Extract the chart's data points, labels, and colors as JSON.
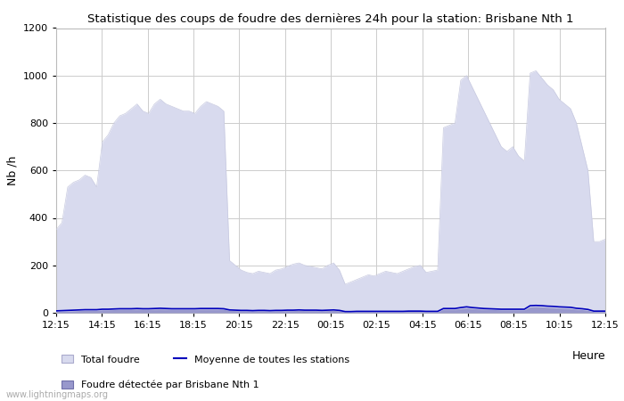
{
  "title": "Statistique des coups de foudre des dernières 24h pour la station: Brisbane Nth 1",
  "ylabel": "Nb /h",
  "xlabel": "Heure",
  "xlim_labels": [
    "12:15",
    "14:15",
    "16:15",
    "18:15",
    "20:15",
    "22:15",
    "00:15",
    "02:15",
    "04:15",
    "06:15",
    "08:15",
    "10:15",
    "12:15"
  ],
  "ylim": [
    0,
    1200
  ],
  "yticks": [
    0,
    200,
    400,
    600,
    800,
    1000,
    1200
  ],
  "bg_color": "#ffffff",
  "grid_color": "#cccccc",
  "total_foudre_color": "#d8daee",
  "total_foudre_edge": "#c8cae0",
  "detected_color": "#9898cc",
  "moyenne_color": "#0000bb",
  "watermark": "www.lightningmaps.org",
  "legend_total": "Total foudre",
  "legend_moyenne": "Moyenne de toutes les stations",
  "legend_detected": "Foudre détectée par Brisbane Nth 1",
  "total_foudre_x": [
    0,
    1,
    2,
    3,
    4,
    5,
    6,
    7,
    8,
    9,
    10,
    11,
    12,
    13,
    14,
    15,
    16,
    17,
    18,
    19,
    20,
    21,
    22,
    23,
    24,
    25,
    26,
    27,
    28,
    29,
    30,
    31,
    32,
    33,
    34,
    35,
    36,
    37,
    38,
    39,
    40,
    41,
    42,
    43,
    44,
    45,
    46,
    47,
    48,
    49,
    50,
    51,
    52,
    53,
    54,
    55,
    56,
    57,
    58,
    59,
    60,
    61,
    62,
    63,
    64,
    65,
    66,
    67,
    68,
    69,
    70,
    71,
    72,
    73,
    74,
    75,
    76,
    77,
    78,
    79,
    80,
    81,
    82,
    83,
    84,
    85,
    86,
    87,
    88,
    89,
    90,
    91,
    92,
    93,
    94,
    95
  ],
  "total_foudre_y": [
    350,
    380,
    530,
    550,
    560,
    580,
    570,
    530,
    720,
    750,
    800,
    830,
    840,
    860,
    880,
    850,
    840,
    880,
    900,
    880,
    870,
    860,
    850,
    850,
    840,
    870,
    890,
    880,
    870,
    850,
    220,
    200,
    180,
    170,
    165,
    175,
    170,
    165,
    180,
    185,
    195,
    205,
    210,
    200,
    195,
    190,
    185,
    200,
    210,
    180,
    120,
    130,
    140,
    150,
    160,
    155,
    165,
    175,
    170,
    165,
    175,
    185,
    195,
    200,
    170,
    175,
    180,
    780,
    790,
    800,
    980,
    1000,
    950,
    900,
    850,
    800,
    750,
    700,
    680,
    700,
    660,
    640,
    1010,
    1020,
    990,
    960,
    940,
    900,
    880,
    860,
    800,
    700,
    600,
    300,
    300,
    310
  ],
  "detected_x": [
    0,
    1,
    2,
    3,
    4,
    5,
    6,
    7,
    8,
    9,
    10,
    11,
    12,
    13,
    14,
    15,
    16,
    17,
    18,
    19,
    20,
    21,
    22,
    23,
    24,
    25,
    26,
    27,
    28,
    29,
    30,
    31,
    32,
    33,
    34,
    35,
    36,
    37,
    38,
    39,
    40,
    41,
    42,
    43,
    44,
    45,
    46,
    47,
    48,
    49,
    50,
    51,
    52,
    53,
    54,
    55,
    56,
    57,
    58,
    59,
    60,
    61,
    62,
    63,
    64,
    65,
    66,
    67,
    68,
    69,
    70,
    71,
    72,
    73,
    74,
    75,
    76,
    77,
    78,
    79,
    80,
    81,
    82,
    83,
    84,
    85,
    86,
    87,
    88,
    89,
    90,
    91,
    92,
    93,
    94,
    95
  ],
  "detected_y": [
    5,
    6,
    7,
    8,
    9,
    10,
    10,
    10,
    12,
    12,
    13,
    14,
    14,
    14,
    15,
    14,
    14,
    15,
    16,
    15,
    14,
    14,
    14,
    14,
    14,
    15,
    15,
    15,
    15,
    14,
    10,
    9,
    8,
    8,
    7,
    8,
    8,
    7,
    8,
    8,
    9,
    9,
    10,
    9,
    9,
    9,
    8,
    9,
    10,
    8,
    3,
    3,
    4,
    4,
    4,
    4,
    4,
    4,
    4,
    4,
    4,
    5,
    5,
    5,
    4,
    4,
    4,
    15,
    15,
    15,
    18,
    20,
    18,
    16,
    15,
    14,
    13,
    12,
    12,
    12,
    12,
    12,
    25,
    26,
    25,
    23,
    22,
    20,
    19,
    18,
    15,
    13,
    10,
    5,
    5,
    5
  ],
  "moyenne_x": [
    0,
    1,
    2,
    3,
    4,
    5,
    6,
    7,
    8,
    9,
    10,
    11,
    12,
    13,
    14,
    15,
    16,
    17,
    18,
    19,
    20,
    21,
    22,
    23,
    24,
    25,
    26,
    27,
    28,
    29,
    30,
    31,
    32,
    33,
    34,
    35,
    36,
    37,
    38,
    39,
    40,
    41,
    42,
    43,
    44,
    45,
    46,
    47,
    48,
    49,
    50,
    51,
    52,
    53,
    54,
    55,
    56,
    57,
    58,
    59,
    60,
    61,
    62,
    63,
    64,
    65,
    66,
    67,
    68,
    69,
    70,
    71,
    72,
    73,
    74,
    75,
    76,
    77,
    78,
    79,
    80,
    81,
    82,
    83,
    84,
    85,
    86,
    87,
    88,
    89,
    90,
    91,
    92,
    93,
    94,
    95
  ],
  "moyenne_y": [
    8,
    9,
    10,
    11,
    12,
    13,
    13,
    13,
    15,
    15,
    16,
    17,
    17,
    17,
    18,
    17,
    17,
    18,
    19,
    18,
    17,
    17,
    17,
    17,
    17,
    18,
    18,
    18,
    18,
    17,
    12,
    11,
    10,
    10,
    9,
    10,
    10,
    9,
    10,
    10,
    11,
    11,
    12,
    11,
    11,
    11,
    10,
    11,
    12,
    10,
    5,
    5,
    6,
    6,
    6,
    6,
    6,
    6,
    6,
    6,
    6,
    7,
    7,
    7,
    6,
    6,
    6,
    18,
    18,
    18,
    22,
    25,
    22,
    20,
    18,
    17,
    16,
    15,
    15,
    15,
    15,
    15,
    30,
    31,
    30,
    28,
    27,
    25,
    24,
    23,
    19,
    17,
    14,
    7,
    7,
    7
  ]
}
